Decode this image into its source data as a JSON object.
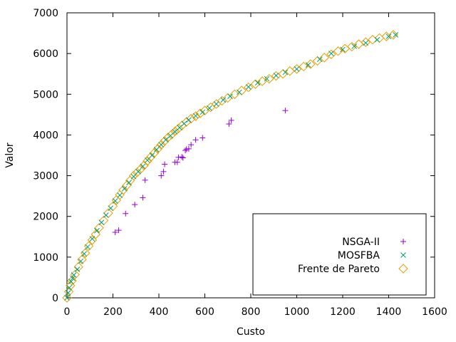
{
  "chart_data": {
    "type": "scatter",
    "title": "",
    "xlabel": "Custo",
    "ylabel": "Valor",
    "xlim": [
      0,
      1600
    ],
    "ylim": [
      0,
      7000
    ],
    "xticks": [
      0,
      200,
      400,
      600,
      800,
      1000,
      1200,
      1400,
      1600
    ],
    "yticks": [
      0,
      1000,
      2000,
      3000,
      4000,
      5000,
      6000,
      7000
    ],
    "grid": false,
    "legend_position": "bottom-right",
    "series": [
      {
        "name": "NSGA-II",
        "marker": "plus",
        "color": "#9400d3",
        "points": [
          [
            210,
            1610
          ],
          [
            225,
            1660
          ],
          [
            255,
            2070
          ],
          [
            295,
            2290
          ],
          [
            330,
            2460
          ],
          [
            340,
            2890
          ],
          [
            410,
            3000
          ],
          [
            420,
            3100
          ],
          [
            425,
            3280
          ],
          [
            470,
            3330
          ],
          [
            480,
            3330
          ],
          [
            485,
            3450
          ],
          [
            500,
            3460
          ],
          [
            505,
            3440
          ],
          [
            515,
            3620
          ],
          [
            520,
            3650
          ],
          [
            530,
            3660
          ],
          [
            540,
            3760
          ],
          [
            560,
            3880
          ],
          [
            590,
            3930
          ],
          [
            705,
            4270
          ],
          [
            715,
            4360
          ],
          [
            950,
            4600
          ]
        ]
      },
      {
        "name": "MOSFBA",
        "marker": "x",
        "color": "#009e73",
        "points": [
          [
            0,
            0
          ],
          [
            5,
            120
          ],
          [
            10,
            250
          ],
          [
            18,
            400
          ],
          [
            25,
            480
          ],
          [
            30,
            560
          ],
          [
            45,
            700
          ],
          [
            60,
            900
          ],
          [
            75,
            1080
          ],
          [
            90,
            1250
          ],
          [
            110,
            1450
          ],
          [
            130,
            1650
          ],
          [
            150,
            1850
          ],
          [
            170,
            2030
          ],
          [
            190,
            2200
          ],
          [
            210,
            2380
          ],
          [
            230,
            2520
          ],
          [
            250,
            2680
          ],
          [
            270,
            2830
          ],
          [
            290,
            2980
          ],
          [
            310,
            3100
          ],
          [
            330,
            3230
          ],
          [
            350,
            3380
          ],
          [
            370,
            3500
          ],
          [
            390,
            3640
          ],
          [
            410,
            3760
          ],
          [
            430,
            3880
          ],
          [
            450,
            3980
          ],
          [
            470,
            4080
          ],
          [
            490,
            4180
          ],
          [
            510,
            4280
          ],
          [
            530,
            4370
          ],
          [
            560,
            4470
          ],
          [
            590,
            4560
          ],
          [
            620,
            4660
          ],
          [
            650,
            4760
          ],
          [
            680,
            4860
          ],
          [
            710,
            4950
          ],
          [
            750,
            5050
          ],
          [
            790,
            5180
          ],
          [
            830,
            5280
          ],
          [
            870,
            5380
          ],
          [
            910,
            5460
          ],
          [
            950,
            5540
          ],
          [
            1000,
            5620
          ],
          [
            1050,
            5720
          ],
          [
            1100,
            5860
          ],
          [
            1150,
            6000
          ],
          [
            1200,
            6100
          ],
          [
            1250,
            6180
          ],
          [
            1300,
            6260
          ],
          [
            1350,
            6340
          ],
          [
            1400,
            6420
          ],
          [
            1430,
            6460
          ]
        ]
      },
      {
        "name": "Frente de Pareto",
        "marker": "diamond",
        "color": "#e69f00",
        "points": [
          [
            0,
            0
          ],
          [
            8,
            150
          ],
          [
            15,
            300
          ],
          [
            22,
            420
          ],
          [
            35,
            570
          ],
          [
            50,
            760
          ],
          [
            65,
            940
          ],
          [
            80,
            1100
          ],
          [
            95,
            1270
          ],
          [
            110,
            1420
          ],
          [
            125,
            1560
          ],
          [
            140,
            1720
          ],
          [
            160,
            1900
          ],
          [
            180,
            2080
          ],
          [
            200,
            2250
          ],
          [
            215,
            2400
          ],
          [
            230,
            2530
          ],
          [
            245,
            2650
          ],
          [
            260,
            2760
          ],
          [
            275,
            2880
          ],
          [
            290,
            3000
          ],
          [
            305,
            3080
          ],
          [
            320,
            3160
          ],
          [
            335,
            3250
          ],
          [
            350,
            3360
          ],
          [
            365,
            3460
          ],
          [
            380,
            3560
          ],
          [
            395,
            3660
          ],
          [
            410,
            3760
          ],
          [
            425,
            3850
          ],
          [
            440,
            3940
          ],
          [
            455,
            4010
          ],
          [
            470,
            4090
          ],
          [
            485,
            4160
          ],
          [
            500,
            4230
          ],
          [
            520,
            4320
          ],
          [
            540,
            4400
          ],
          [
            560,
            4460
          ],
          [
            580,
            4530
          ],
          [
            600,
            4600
          ],
          [
            625,
            4680
          ],
          [
            650,
            4760
          ],
          [
            675,
            4840
          ],
          [
            700,
            4910
          ],
          [
            730,
            5000
          ],
          [
            760,
            5090
          ],
          [
            790,
            5170
          ],
          [
            820,
            5250
          ],
          [
            850,
            5320
          ],
          [
            880,
            5380
          ],
          [
            910,
            5450
          ],
          [
            940,
            5500
          ],
          [
            970,
            5570
          ],
          [
            1000,
            5620
          ],
          [
            1030,
            5680
          ],
          [
            1060,
            5740
          ],
          [
            1090,
            5820
          ],
          [
            1120,
            5900
          ],
          [
            1150,
            5980
          ],
          [
            1180,
            6060
          ],
          [
            1210,
            6120
          ],
          [
            1240,
            6170
          ],
          [
            1270,
            6230
          ],
          [
            1300,
            6280
          ],
          [
            1330,
            6340
          ],
          [
            1360,
            6380
          ],
          [
            1390,
            6420
          ],
          [
            1420,
            6460
          ]
        ]
      }
    ]
  }
}
